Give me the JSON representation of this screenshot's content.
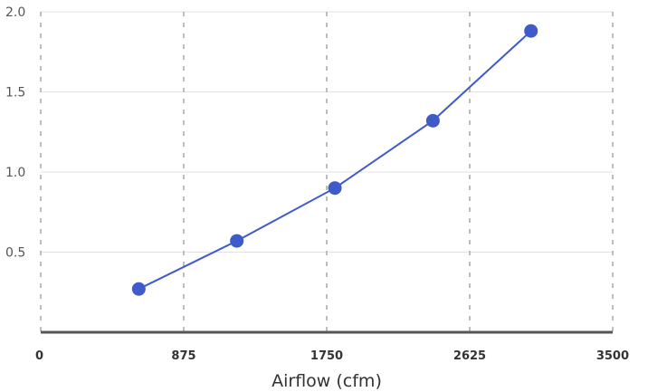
{
  "chart_data": {
    "type": "line",
    "title": "",
    "xlabel": "Airflow (cfm)",
    "ylabel": "",
    "xlim": [
      0,
      3500
    ],
    "ylim": [
      0,
      2.0
    ],
    "x_ticks": [
      0,
      875,
      1750,
      2625,
      3500
    ],
    "x_tick_labels": [
      "0",
      "875",
      "1750",
      "2625",
      "3500"
    ],
    "y_ticks": [
      0.5,
      1.0,
      1.5,
      2.0
    ],
    "y_tick_labels": [
      "0.5",
      "1.0",
      "1.5",
      "2.0"
    ],
    "grid": {
      "horizontal": true,
      "vertical": true,
      "vertical_style": "dashed"
    },
    "legend": "none",
    "series": [
      {
        "color": "#3f5bc9",
        "x": [
          600,
          1200,
          1800,
          2400,
          3000
        ],
        "y": [
          0.27,
          0.57,
          0.9,
          1.32,
          1.88
        ]
      }
    ]
  }
}
